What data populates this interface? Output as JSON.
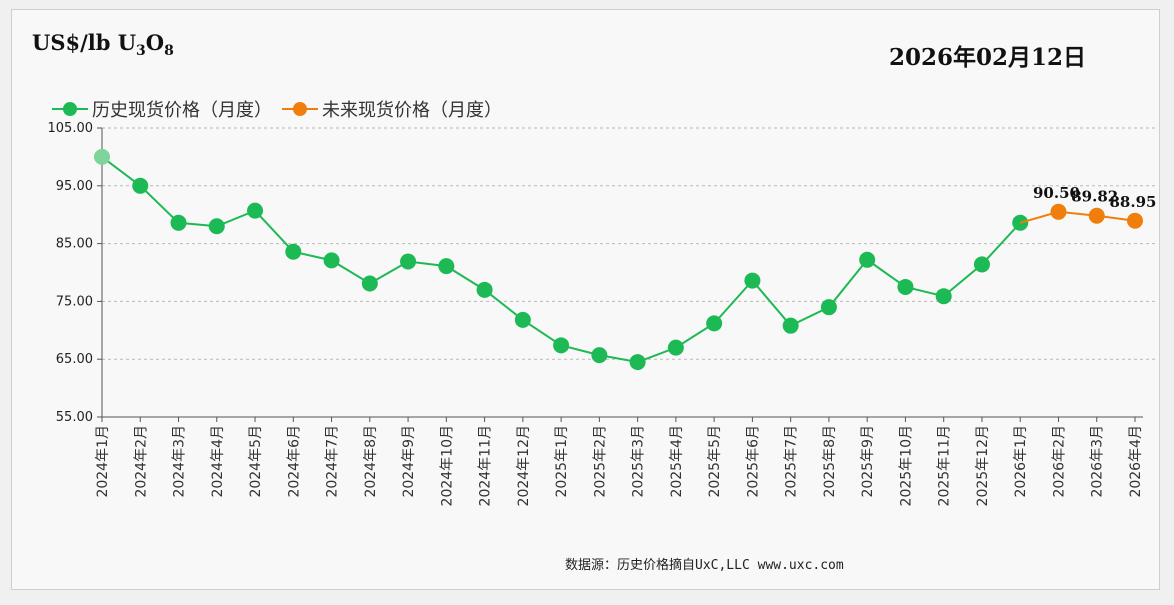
{
  "header": {
    "unit_prefix": "US$/lb U",
    "unit_sub1": "3",
    "unit_mid": "O",
    "unit_sub2": "8",
    "date": "2026年02月12日"
  },
  "source": "数据源：历史价格摘自UxC,LLC  www.uxc.com",
  "chart_data": {
    "type": "line",
    "title": "",
    "ylabel": "US$/lb U3O8",
    "xlabel": "",
    "ylim": [
      55,
      105
    ],
    "yticks": [
      "55.00",
      "65.00",
      "75.00",
      "85.00",
      "95.00",
      "105.00"
    ],
    "grid": "horizontal dashed",
    "legend_position": "top-left",
    "categories": [
      "2024年1月",
      "2024年2月",
      "2024年3月",
      "2024年4月",
      "2024年5月",
      "2024年6月",
      "2024年7月",
      "2024年8月",
      "2024年9月",
      "2024年10月",
      "2024年11月",
      "2024年12月",
      "2025年1月",
      "2025年2月",
      "2025年3月",
      "2025年4月",
      "2025年5月",
      "2025年6月",
      "2025年7月",
      "2025年8月",
      "2025年9月",
      "2025年10月",
      "2025年11月",
      "2025年12月",
      "2026年1月",
      "2026年2月",
      "2026年3月",
      "2026年4月"
    ],
    "series": [
      {
        "name": "历史现货价格（月度）",
        "color": "#1db954",
        "values": [
          100.0,
          95.0,
          88.6,
          88.0,
          90.7,
          83.6,
          82.1,
          78.1,
          81.9,
          81.1,
          77.0,
          71.8,
          67.4,
          65.7,
          64.5,
          67.0,
          71.2,
          78.6,
          70.8,
          74.0,
          82.2,
          77.5,
          75.9,
          81.4,
          88.6,
          null,
          null,
          null
        ]
      },
      {
        "name": "未来现货价格（月度）",
        "color": "#f07e0c",
        "values": [
          null,
          null,
          null,
          null,
          null,
          null,
          null,
          null,
          null,
          null,
          null,
          null,
          null,
          null,
          null,
          null,
          null,
          null,
          null,
          null,
          null,
          null,
          null,
          null,
          88.6,
          90.5,
          89.82,
          88.95
        ],
        "data_labels": [
          "",
          "",
          "",
          "",
          "",
          "",
          "",
          "",
          "",
          "",
          "",
          "",
          "",
          "",
          "",
          "",
          "",
          "",
          "",
          "",
          "",
          "",
          "",
          "",
          "",
          "90.50",
          "89.82",
          "88.95"
        ]
      }
    ]
  }
}
